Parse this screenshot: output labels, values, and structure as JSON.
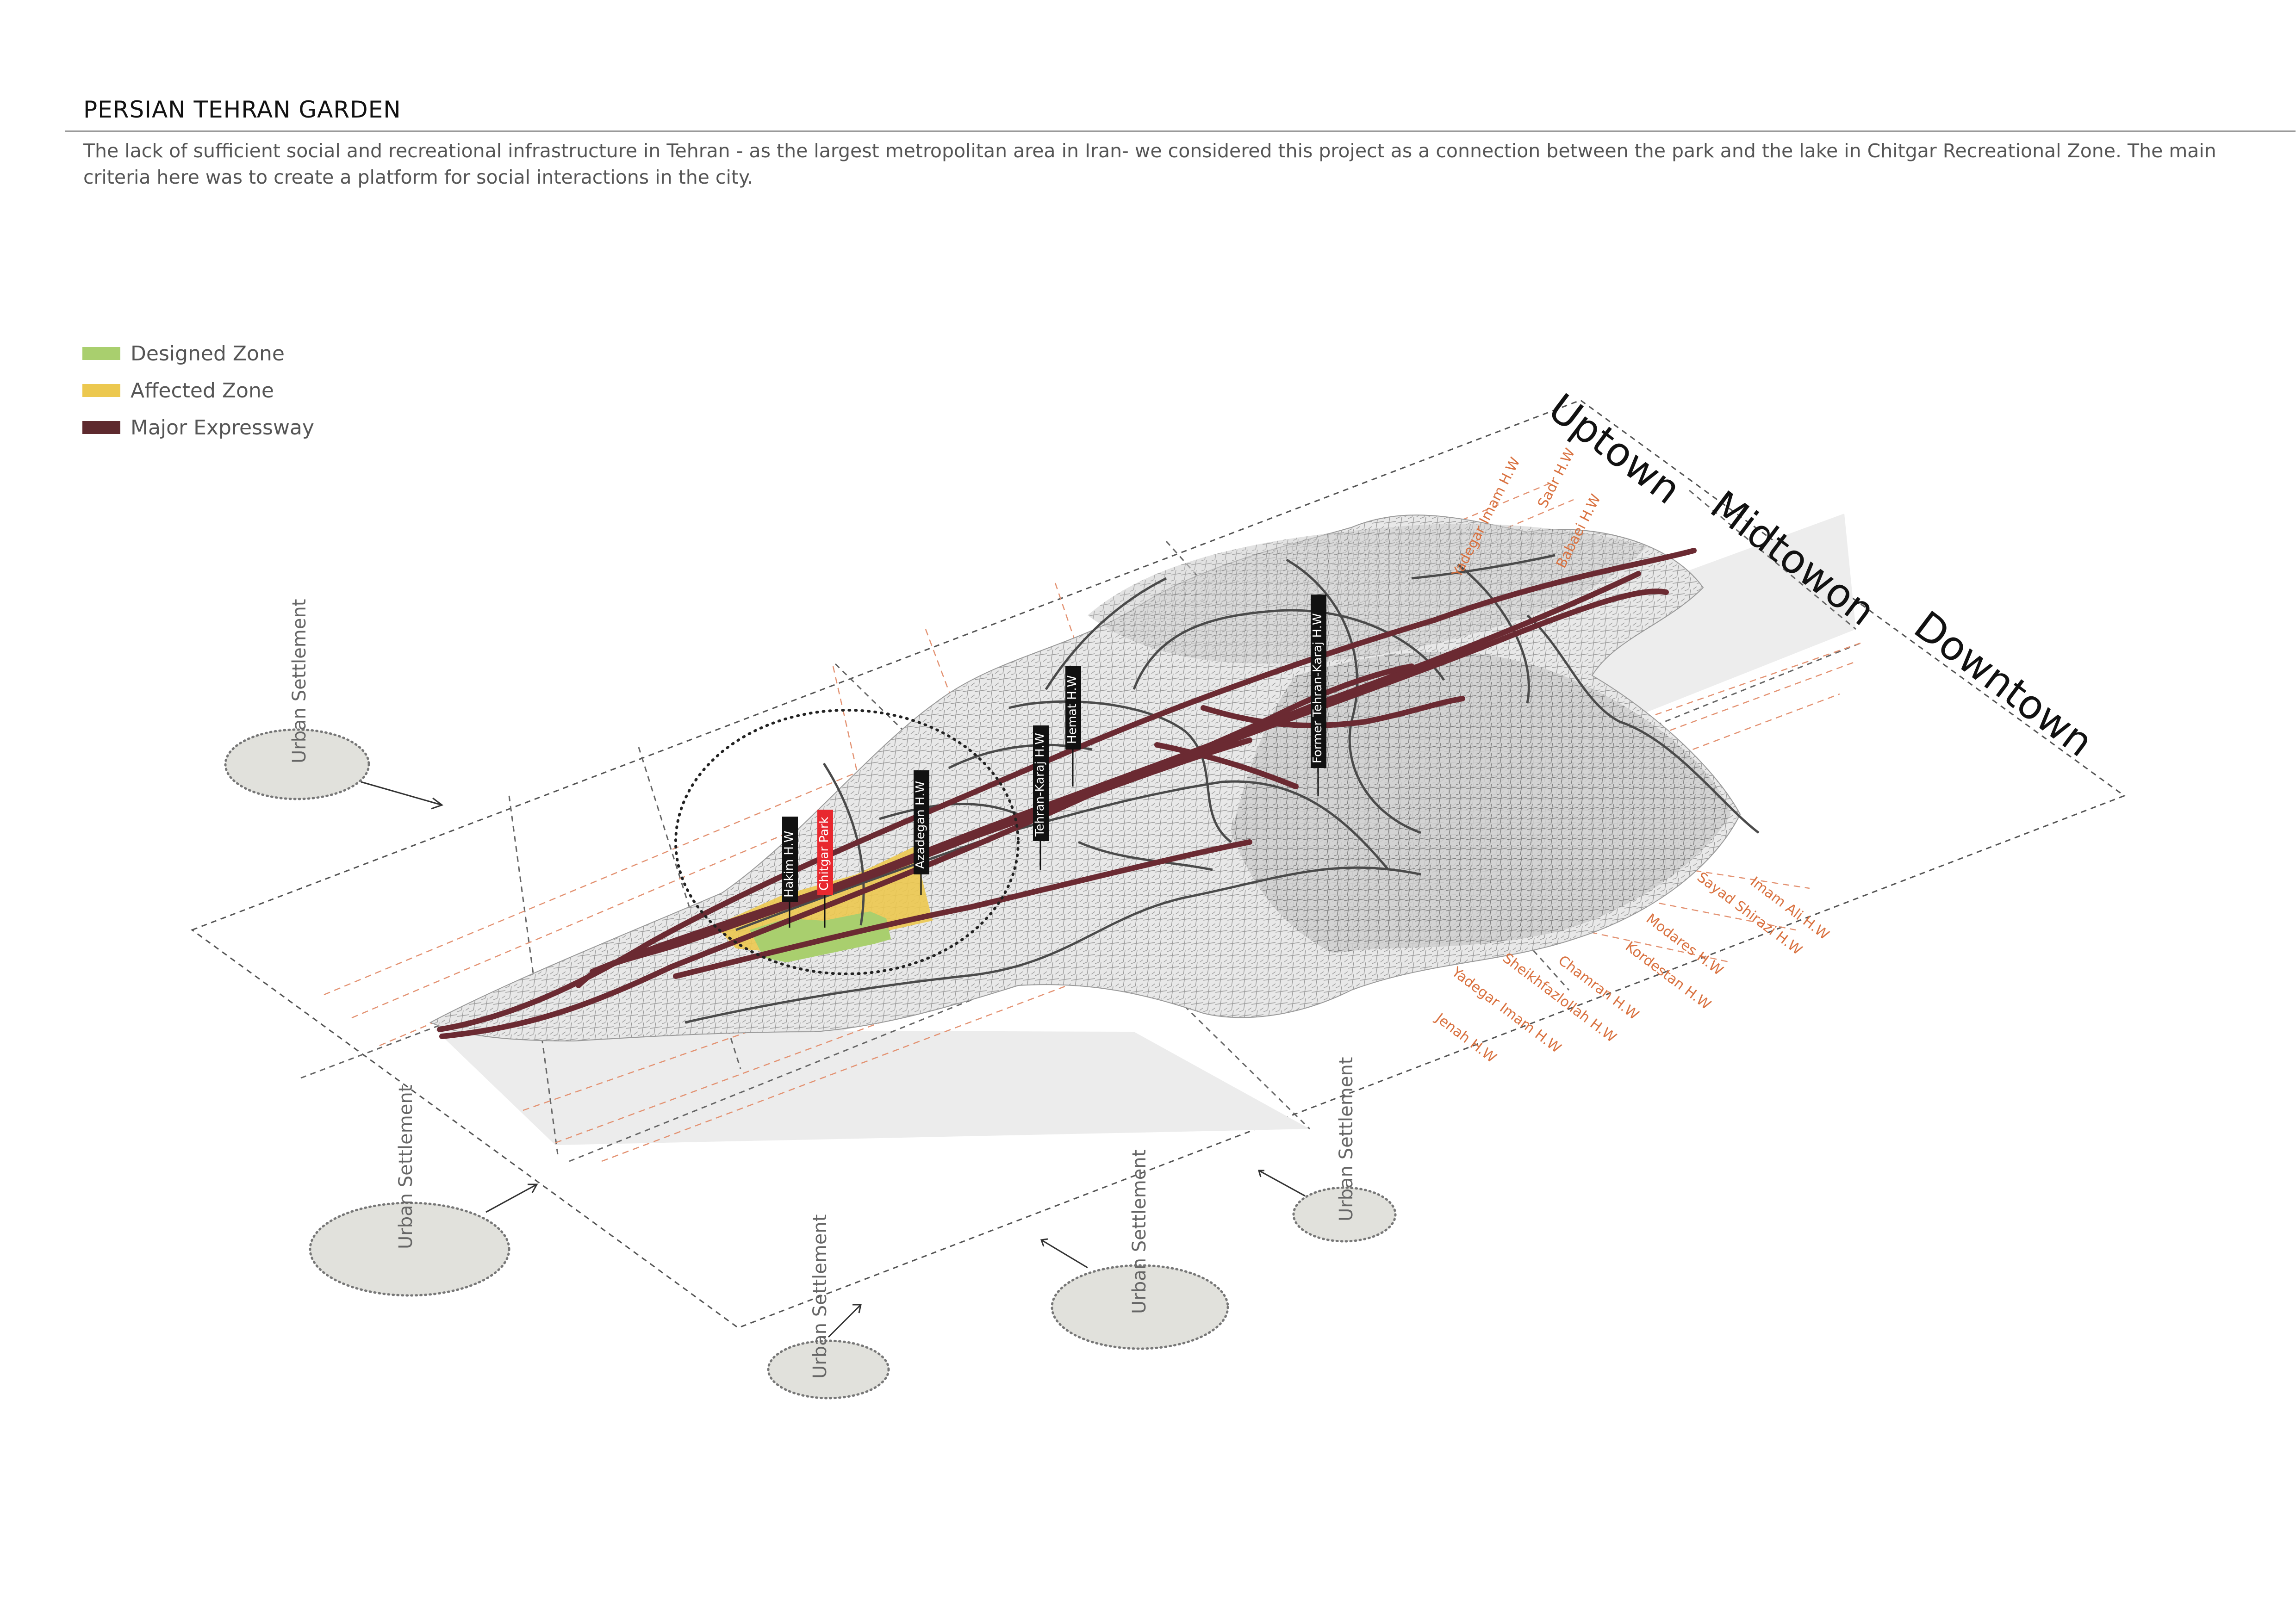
{
  "header": {
    "title": "PERSIAN TEHRAN GARDEN",
    "description": "The lack of sufficient social and recreational infrastructure in Tehran - as the largest metropolitan area in Iran- we considered this project as a connection between the park and the lake in Chitgar Recreational Zone. The main criteria here was to create a platform for social interactions in the city."
  },
  "legend": [
    {
      "label": "Designed Zone",
      "color": "#a9cf6e"
    },
    {
      "label": "Affected Zone",
      "color": "#ecc84f"
    },
    {
      "label": "Major Expressway",
      "color": "#5e2a2e"
    }
  ],
  "zones": {
    "uptown": "Uptown",
    "midtown": "Midtowon",
    "downtown": "Downtown"
  },
  "map_tags": {
    "hakim": "Hakim H.W",
    "chitgar": "Chitgar Park",
    "azadegan": "Azadegan H.W",
    "tehran_karaj": "Tehran-Karaj H.W",
    "hemat": "Hemat H.W",
    "former_tehran_karaj": "Former Tehran-Karaj H.W"
  },
  "highway_labels_north": [
    "Yadegar Imam H.W",
    "Sadr H.W",
    "Babaei H.W"
  ],
  "highway_labels_east": [
    "Imam Ali H.W",
    "Sayad Shirazi H.W",
    "Modares H.W",
    "Kordestan H.W",
    "Chamran H.W",
    "Sheikhfazlollah H.W",
    "Yadegar Imam H.W",
    "Jenah H.W"
  ],
  "urban_settlement": "Urban Settlement",
  "colors": {
    "expressway": "#6b2a32",
    "guide": "#e39272",
    "road": "#4a4a4a",
    "label_orange": "#d9713f",
    "tag_red": "#e8282f"
  }
}
